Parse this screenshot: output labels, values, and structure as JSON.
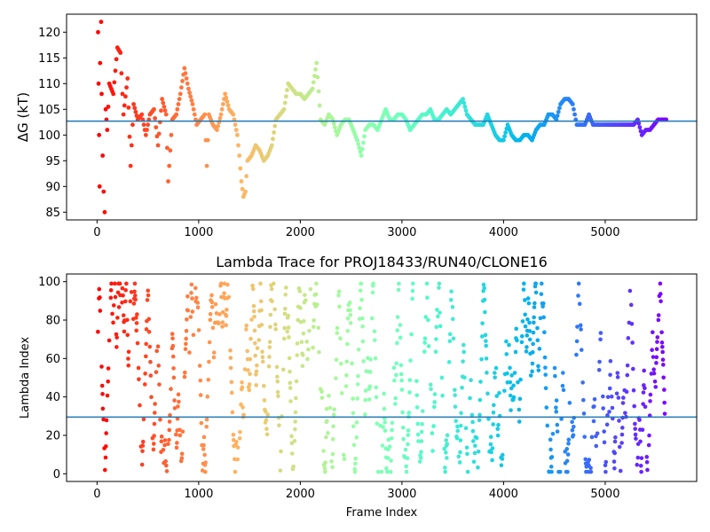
{
  "chart_data": [
    {
      "type": "scatter",
      "title": "",
      "xlabel": "",
      "ylabel": "ΔG (kT)",
      "xlim": [
        -300,
        5900
      ],
      "ylim": [
        83.5,
        123.5
      ],
      "xticks": [
        0,
        1000,
        2000,
        3000,
        4000,
        5000
      ],
      "yticks": [
        85,
        90,
        95,
        100,
        105,
        110,
        115,
        120
      ],
      "colormap": "rainbow",
      "grid": false,
      "hline": {
        "value": 102.7,
        "color": "#1f77b4"
      },
      "points": [
        [
          10,
          120
        ],
        [
          15,
          110
        ],
        [
          20,
          100
        ],
        [
          25,
          90
        ],
        [
          30,
          114
        ],
        [
          40,
          122
        ],
        [
          45,
          108
        ],
        [
          55,
          96
        ],
        [
          65,
          89
        ],
        [
          75,
          85
        ],
        [
          85,
          105
        ],
        [
          100,
          101
        ],
        [
          120,
          110
        ],
        [
          160,
          108
        ],
        [
          200,
          117
        ],
        [
          230,
          116
        ],
        [
          260,
          104
        ],
        [
          300,
          111
        ],
        [
          330,
          94
        ],
        [
          360,
          106
        ],
        [
          400,
          103
        ],
        [
          440,
          104
        ],
        [
          480,
          100
        ],
        [
          520,
          104
        ],
        [
          560,
          105
        ],
        [
          600,
          98
        ],
        [
          640,
          107
        ],
        [
          680,
          104
        ],
        [
          700,
          91
        ],
        [
          740,
          103
        ],
        [
          780,
          104
        ],
        [
          820,
          108
        ],
        [
          860,
          113
        ],
        [
          900,
          109
        ],
        [
          940,
          106
        ],
        [
          980,
          102
        ],
        [
          1020,
          103
        ],
        [
          1060,
          104
        ],
        [
          1080,
          94
        ],
        [
          1100,
          104
        ],
        [
          1140,
          102
        ],
        [
          1180,
          101
        ],
        [
          1220,
          104
        ],
        [
          1260,
          108
        ],
        [
          1300,
          105
        ],
        [
          1340,
          104
        ],
        [
          1380,
          100
        ],
        [
          1400,
          96
        ],
        [
          1420,
          91
        ],
        [
          1440,
          88
        ],
        [
          1460,
          89
        ],
        [
          1480,
          95
        ],
        [
          1520,
          96
        ],
        [
          1560,
          98
        ],
        [
          1600,
          97
        ],
        [
          1640,
          95
        ],
        [
          1680,
          96
        ],
        [
          1720,
          98
        ],
        [
          1760,
          103
        ],
        [
          1800,
          104
        ],
        [
          1840,
          105
        ],
        [
          1880,
          110
        ],
        [
          1920,
          109
        ],
        [
          1960,
          108
        ],
        [
          2000,
          108
        ],
        [
          2040,
          107
        ],
        [
          2080,
          108
        ],
        [
          2120,
          109
        ],
        [
          2160,
          114
        ],
        [
          2200,
          103
        ],
        [
          2240,
          102
        ],
        [
          2280,
          104
        ],
        [
          2320,
          103
        ],
        [
          2360,
          100
        ],
        [
          2400,
          102
        ],
        [
          2440,
          103
        ],
        [
          2480,
          103
        ],
        [
          2520,
          101
        ],
        [
          2560,
          99
        ],
        [
          2600,
          96
        ],
        [
          2640,
          101
        ],
        [
          2680,
          102
        ],
        [
          2720,
          102
        ],
        [
          2760,
          101
        ],
        [
          2800,
          103
        ],
        [
          2840,
          105
        ],
        [
          2880,
          103
        ],
        [
          2920,
          103
        ],
        [
          2960,
          104
        ],
        [
          3000,
          104
        ],
        [
          3040,
          103
        ],
        [
          3080,
          101
        ],
        [
          3120,
          102
        ],
        [
          3160,
          103
        ],
        [
          3200,
          104
        ],
        [
          3240,
          104
        ],
        [
          3280,
          105
        ],
        [
          3320,
          103
        ],
        [
          3360,
          103
        ],
        [
          3400,
          104
        ],
        [
          3440,
          105
        ],
        [
          3480,
          104
        ],
        [
          3520,
          105
        ],
        [
          3560,
          106
        ],
        [
          3600,
          107
        ],
        [
          3640,
          104
        ],
        [
          3680,
          103
        ],
        [
          3720,
          102
        ],
        [
          3760,
          102
        ],
        [
          3800,
          102
        ],
        [
          3840,
          104
        ],
        [
          3880,
          102
        ],
        [
          3920,
          100
        ],
        [
          3960,
          99
        ],
        [
          4000,
          99
        ],
        [
          4040,
          102
        ],
        [
          4080,
          100
        ],
        [
          4120,
          99
        ],
        [
          4160,
          99
        ],
        [
          4200,
          100
        ],
        [
          4240,
          100
        ],
        [
          4280,
          99
        ],
        [
          4320,
          101
        ],
        [
          4360,
          102
        ],
        [
          4400,
          102
        ],
        [
          4440,
          104
        ],
        [
          4480,
          104
        ],
        [
          4520,
          103
        ],
        [
          4560,
          106
        ],
        [
          4600,
          107
        ],
        [
          4640,
          107
        ],
        [
          4680,
          106
        ],
        [
          4720,
          102
        ],
        [
          4760,
          102
        ],
        [
          4800,
          102
        ],
        [
          4840,
          104
        ],
        [
          4880,
          102
        ],
        [
          4920,
          102
        ],
        [
          4960,
          102
        ],
        [
          5000,
          102
        ],
        [
          5100,
          102
        ],
        [
          5200,
          102
        ],
        [
          5280,
          102
        ],
        [
          5320,
          103
        ],
        [
          5360,
          100
        ],
        [
          5400,
          101
        ],
        [
          5440,
          101
        ],
        [
          5480,
          102
        ],
        [
          5520,
          103
        ],
        [
          5560,
          103
        ],
        [
          5600,
          103
        ]
      ]
    },
    {
      "type": "scatter",
      "title": "Lambda Trace for PROJ18433/RUN40/CLONE16",
      "xlabel": "Frame Index",
      "ylabel": "Lambda Index",
      "xlim": [
        -300,
        5900
      ],
      "ylim": [
        -4,
        104
      ],
      "xticks": [
        0,
        1000,
        2000,
        3000,
        4000,
        5000
      ],
      "yticks": [
        0,
        20,
        40,
        60,
        80,
        100
      ],
      "colormap": "rainbow",
      "grid": false,
      "hline": {
        "value": 29.5,
        "color": "#1f77b4"
      },
      "xmax": 5600
    }
  ]
}
